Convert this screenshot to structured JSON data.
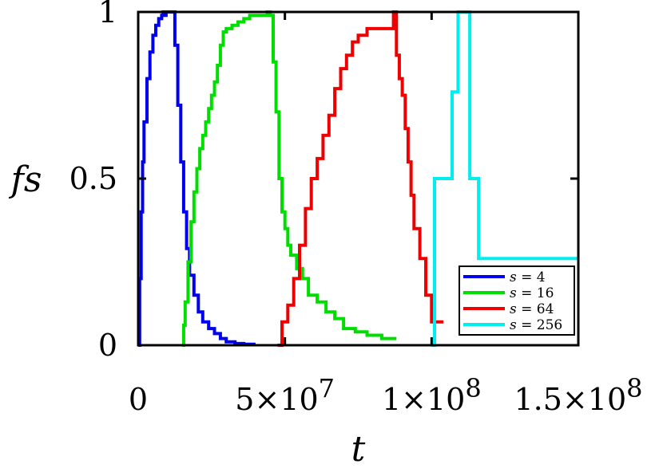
{
  "chart_data": {
    "type": "line",
    "xlabel": "t",
    "ylabel": "fs",
    "xlim": [
      0,
      150000000
    ],
    "ylim": [
      0,
      1
    ],
    "x_ticks": [
      {
        "value": 0,
        "label": "0",
        "exp": ""
      },
      {
        "value": 50000000,
        "label": "5×10",
        "exp": "7"
      },
      {
        "value": 100000000,
        "label": "1×10",
        "exp": "8"
      },
      {
        "value": 150000000,
        "label": "1.5×10",
        "exp": "8"
      }
    ],
    "y_ticks": [
      {
        "value": 0,
        "label": "0"
      },
      {
        "value": 0.5,
        "label": "0.5"
      },
      {
        "value": 1,
        "label": "1"
      }
    ],
    "legend": {
      "placement": "bottom-right",
      "italic_prefix": "s",
      "sep": " = "
    },
    "series": [
      {
        "name": "4",
        "color": "#0000ee",
        "x": [
          0,
          500000,
          1000000,
          1500000,
          2000000,
          3000000,
          4000000,
          5000000,
          6000000,
          7000000,
          8000000,
          8500000,
          9000000,
          9500000,
          10000000,
          11000000,
          11800000,
          12500000,
          13500000,
          14500000,
          15500000,
          16500000,
          17500000,
          19000000,
          20500000,
          22000000,
          24000000,
          26000000,
          28000000,
          30000000,
          33000000,
          36000000,
          40000000
        ],
        "y": [
          0,
          0.2,
          0.4,
          0.55,
          0.67,
          0.8,
          0.88,
          0.93,
          0.96,
          0.98,
          0.99,
          1,
          0.99,
          1,
          1,
          1,
          1,
          0.9,
          0.72,
          0.55,
          0.4,
          0.29,
          0.21,
          0.15,
          0.1,
          0.07,
          0.05,
          0.035,
          0.02,
          0.01,
          0.005,
          0.003,
          0.003
        ]
      },
      {
        "name": "16",
        "color": "#00dd00",
        "x": [
          15000000,
          15500000,
          16000000,
          17000000,
          18000000,
          19000000,
          20000000,
          21000000,
          22000000,
          23000000,
          24000000,
          25000000,
          26000000,
          27000000,
          28000000,
          29000000,
          30000000,
          32000000,
          34000000,
          36000000,
          38000000,
          40000000,
          42000000,
          44000000,
          45000000,
          46000000,
          47000000,
          48000000,
          49000000,
          50000000,
          51000000,
          52000000,
          54000000,
          56000000,
          58000000,
          61000000,
          64000000,
          67000000,
          70000000,
          74000000,
          78000000,
          83000000,
          88000000
        ],
        "y": [
          0,
          0.06,
          0.13,
          0.25,
          0.37,
          0.46,
          0.53,
          0.59,
          0.63,
          0.67,
          0.71,
          0.75,
          0.79,
          0.84,
          0.9,
          0.94,
          0.95,
          0.96,
          0.97,
          0.98,
          0.99,
          0.99,
          0.99,
          1,
          0.99,
          0.85,
          0.7,
          0.5,
          0.4,
          0.35,
          0.3,
          0.27,
          0.23,
          0.2,
          0.15,
          0.13,
          0.1,
          0.08,
          0.05,
          0.04,
          0.03,
          0.02,
          0.02
        ]
      },
      {
        "name": "64",
        "color": "#ee0000",
        "x": [
          47500000,
          49000000,
          51000000,
          53000000,
          55000000,
          57000000,
          59000000,
          61000000,
          63000000,
          65000000,
          67000000,
          69000000,
          71000000,
          73000000,
          75000000,
          78000000,
          80000000,
          83000000,
          86000000,
          87000000,
          88000000,
          89000000,
          90000000,
          91000000,
          92000000,
          93000000,
          94000000,
          96000000,
          98000000,
          100000000,
          102000000,
          104000000
        ],
        "y": [
          0,
          0.07,
          0.12,
          0.2,
          0.3,
          0.41,
          0.5,
          0.56,
          0.63,
          0.69,
          0.77,
          0.83,
          0.87,
          0.91,
          0.93,
          0.95,
          0.95,
          0.95,
          0.95,
          1,
          0.87,
          0.8,
          0.75,
          0.65,
          0.55,
          0.45,
          0.35,
          0.26,
          0.15,
          0.07,
          0.07,
          0.07
        ]
      },
      {
        "name": "256",
        "color": "#00eeee",
        "x": [
          100000000,
          101000000,
          105000000,
          107000000,
          109000000,
          111000000,
          113000000,
          116000000,
          125000000,
          135000000,
          150000000
        ],
        "y": [
          0,
          0.5,
          0.5,
          0.76,
          1,
          1,
          0.5,
          0.26,
          0.26,
          0.26,
          0.26
        ]
      }
    ]
  }
}
